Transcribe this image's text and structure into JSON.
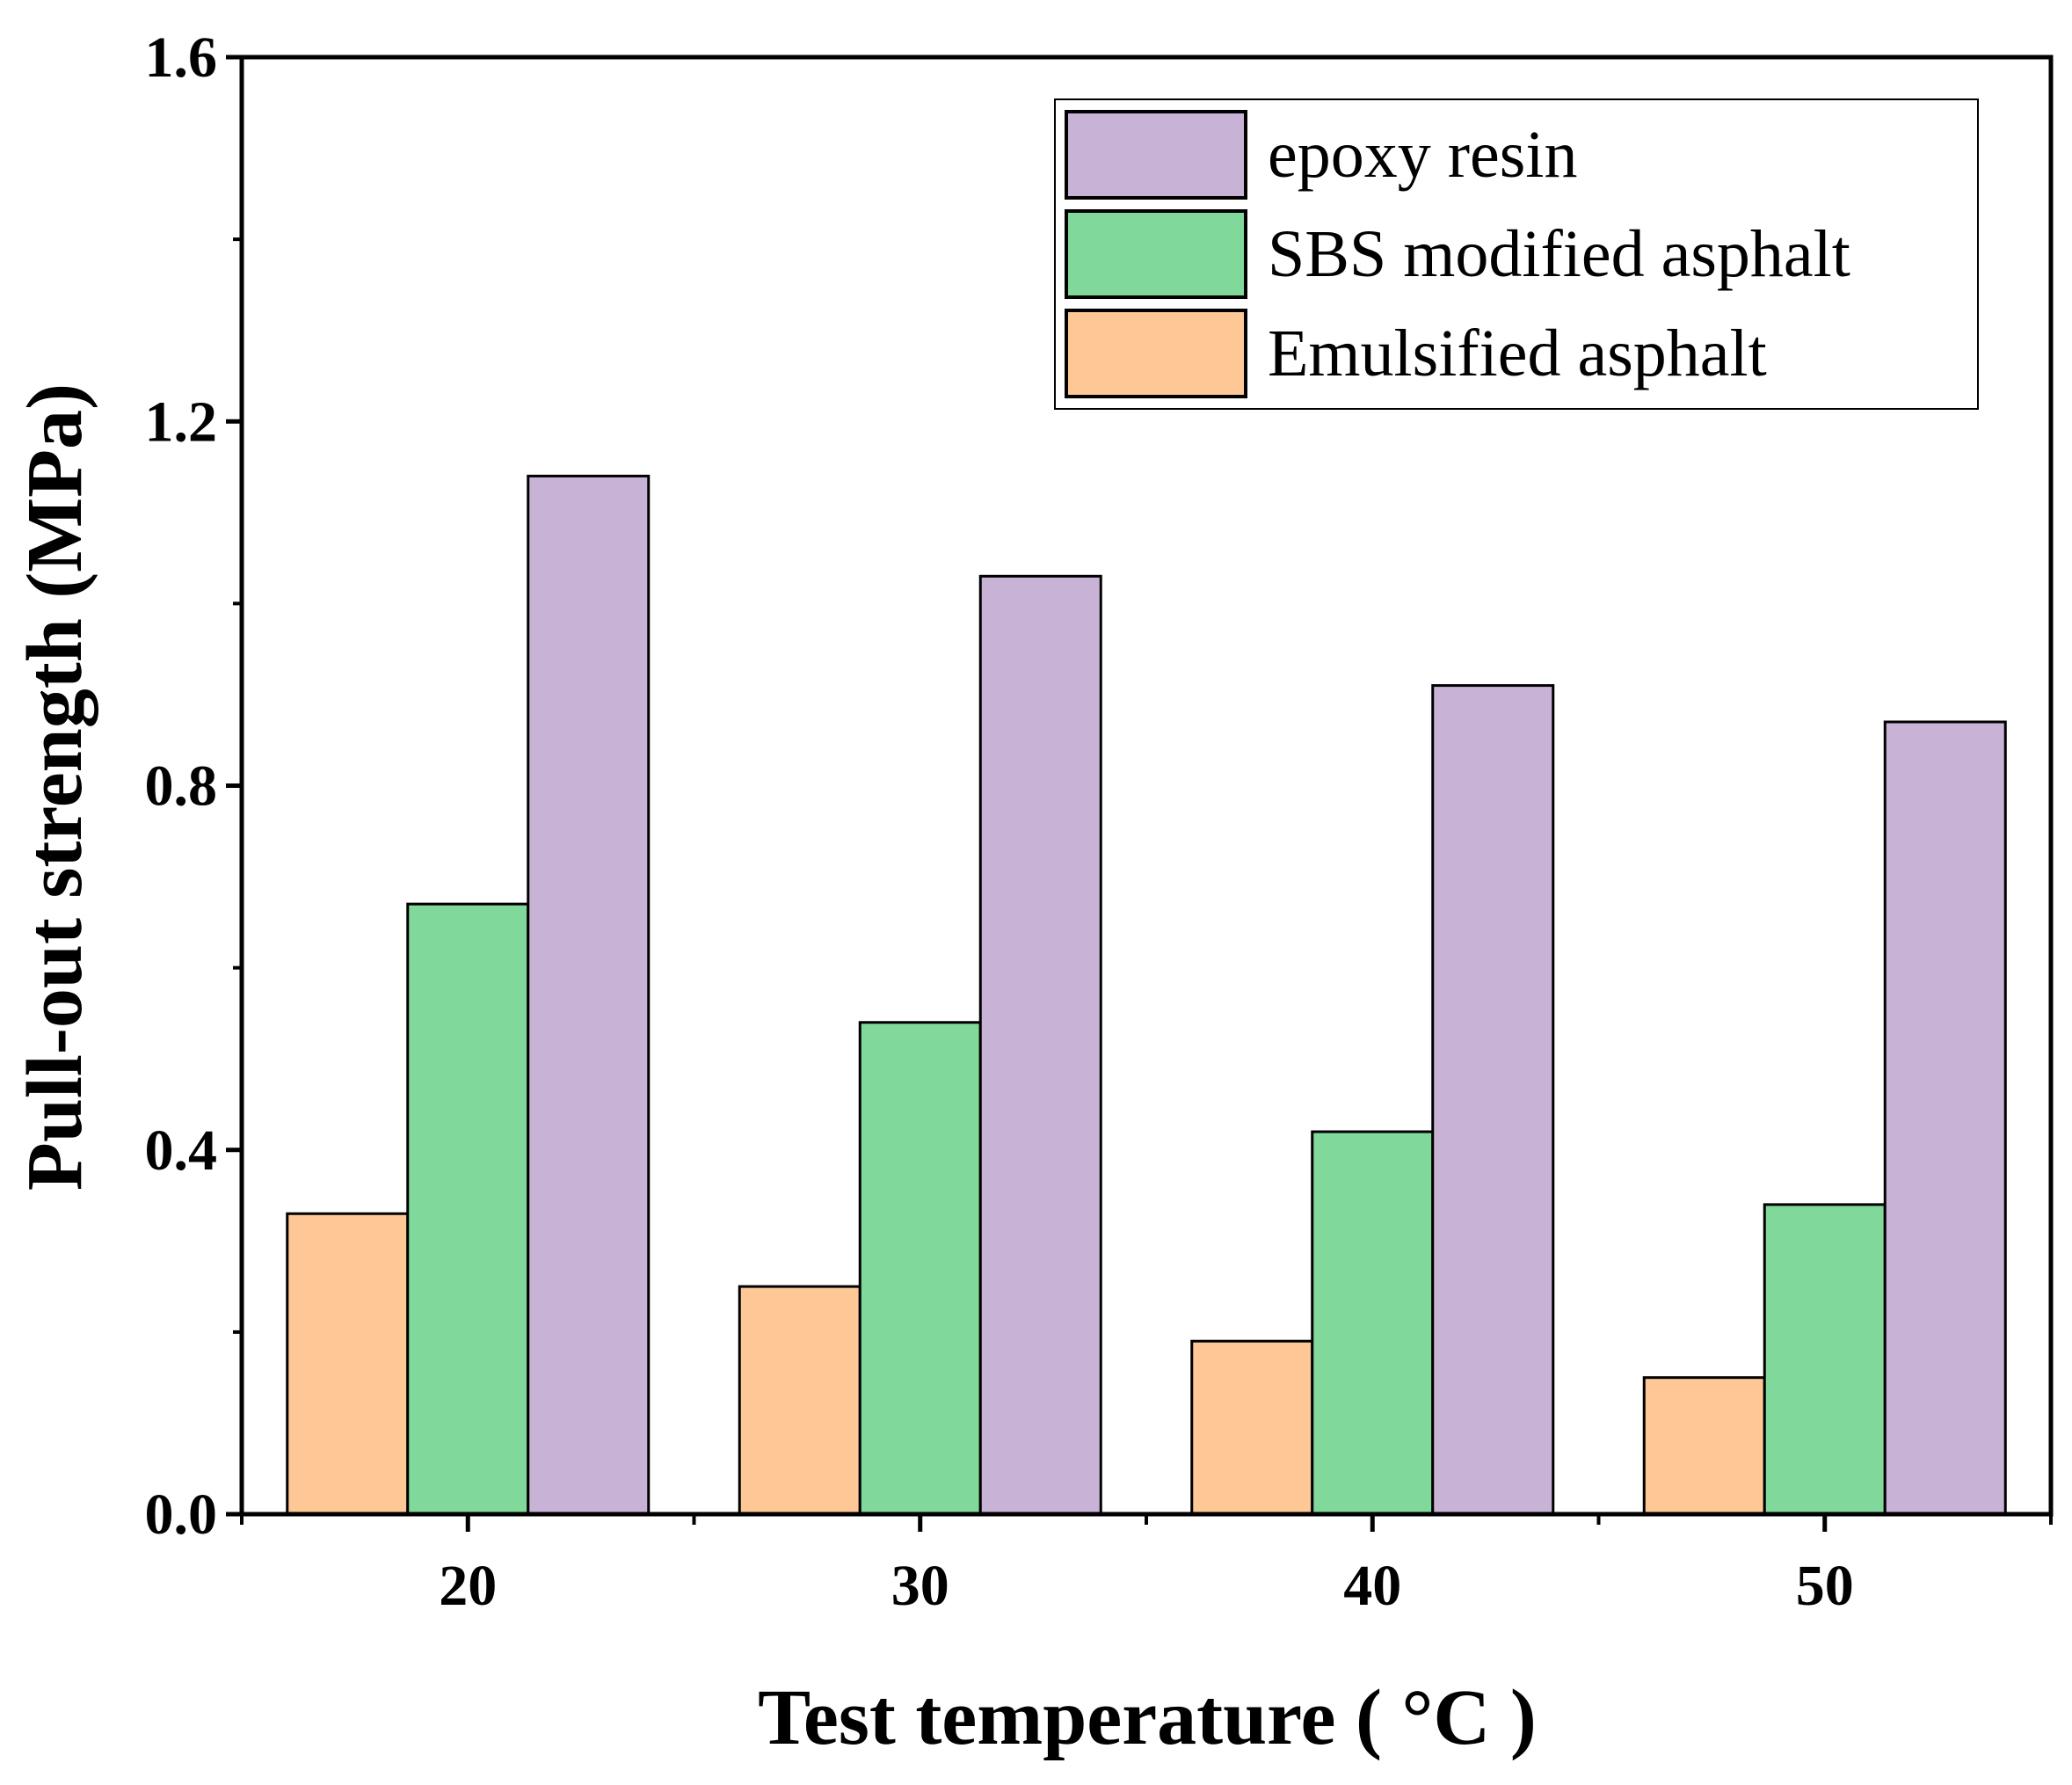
{
  "chart_data": {
    "type": "bar",
    "title": "",
    "xlabel": "Test temperature ( °C )",
    "ylabel": "Pull-out strength (MPa)",
    "categories": [
      "20",
      "30",
      "40",
      "50"
    ],
    "ylim": [
      0,
      1.6
    ],
    "yticks": [
      "0.0",
      "0.4",
      "0.8",
      "1.2",
      "1.6"
    ],
    "grid": false,
    "legend_position": "top-right",
    "series": [
      {
        "name": "Emulsified asphalt",
        "color": "#FDC895",
        "values": [
          0.33,
          0.25,
          0.19,
          0.15
        ]
      },
      {
        "name": "SBS modified asphalt",
        "color": "#80D99A",
        "values": [
          0.67,
          0.54,
          0.42,
          0.34
        ]
      },
      {
        "name": "epoxy resin",
        "color": "#C8B3D7",
        "values": [
          1.14,
          1.03,
          0.91,
          0.87
        ]
      }
    ],
    "legend_order": [
      "epoxy resin",
      "SBS modified asphalt",
      "Emulsified asphalt"
    ]
  }
}
